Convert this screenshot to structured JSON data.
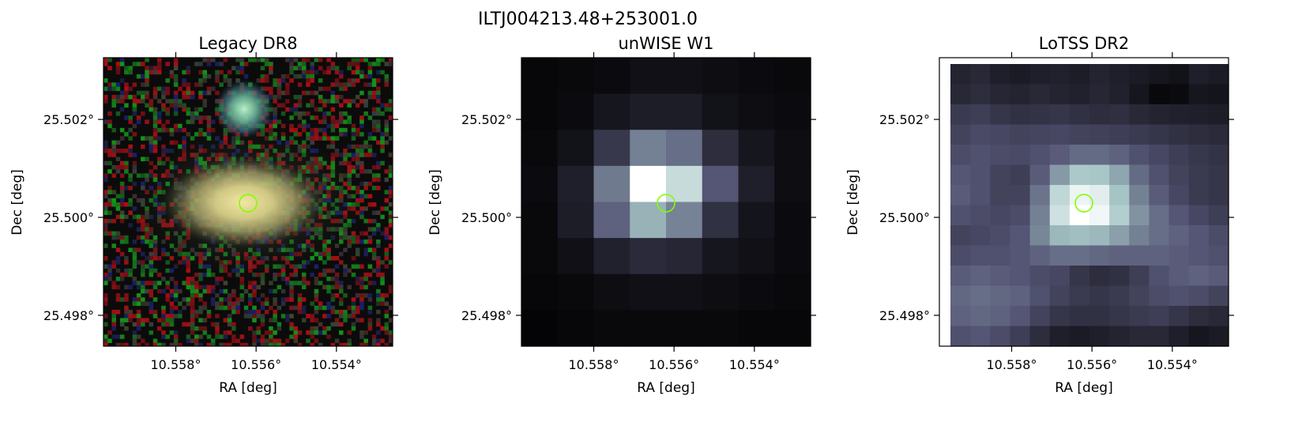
{
  "figure": {
    "suptitle": "ILTJ004213.48+253001.0"
  },
  "colors": {
    "marker": "#7fff00",
    "axes": "#000000",
    "background": "#ffffff"
  },
  "chart_data": [
    {
      "type": "image",
      "title": "Legacy DR8",
      "xlabel": "RA [deg]",
      "ylabel": "Dec [deg]",
      "xlim": [
        10.5598,
        10.5526
      ],
      "ylim": [
        25.49737,
        25.50326
      ],
      "xticks": [
        10.558,
        10.556,
        10.554
      ],
      "xtick_labels": [
        "10.558°",
        "10.556°",
        "10.554°"
      ],
      "yticks": [
        25.498,
        25.5,
        25.502
      ],
      "ytick_labels": [
        "25.498°",
        "25.500°",
        "25.502°"
      ],
      "image_kind": "rgb-optical",
      "marker": {
        "shape": "circle",
        "ra": 10.5562,
        "dec": 25.50029
      }
    },
    {
      "type": "image",
      "title": "unWISE W1",
      "xlabel": "RA [deg]",
      "ylabel": "Dec [deg]",
      "xlim": [
        10.5598,
        10.5526
      ],
      "ylim": [
        25.49737,
        25.50326
      ],
      "xticks": [
        10.558,
        10.556,
        10.554
      ],
      "xtick_labels": [
        "10.558°",
        "10.556°",
        "10.554°"
      ],
      "yticks": [
        25.498,
        25.5,
        25.502
      ],
      "ytick_labels": [
        "25.498°",
        "25.500°",
        "25.502°"
      ],
      "image_kind": "grayscale-bone",
      "pixel_grid": {
        "cols": 8,
        "rows": 8,
        "values": [
          [
            0.03,
            0.04,
            0.05,
            0.07,
            0.07,
            0.06,
            0.05,
            0.04
          ],
          [
            0.03,
            0.05,
            0.1,
            0.13,
            0.13,
            0.08,
            0.06,
            0.05
          ],
          [
            0.04,
            0.08,
            0.25,
            0.52,
            0.46,
            0.2,
            0.1,
            0.06
          ],
          [
            0.05,
            0.14,
            0.5,
            1.0,
            0.84,
            0.38,
            0.14,
            0.06
          ],
          [
            0.04,
            0.13,
            0.42,
            0.68,
            0.53,
            0.22,
            0.09,
            0.05
          ],
          [
            0.04,
            0.07,
            0.15,
            0.19,
            0.17,
            0.1,
            0.07,
            0.05
          ],
          [
            0.03,
            0.04,
            0.06,
            0.07,
            0.07,
            0.06,
            0.05,
            0.04
          ],
          [
            0.02,
            0.03,
            0.04,
            0.04,
            0.04,
            0.04,
            0.03,
            0.03
          ]
        ]
      },
      "marker": {
        "shape": "circle",
        "ra": 10.5562,
        "dec": 25.50029
      }
    },
    {
      "type": "image",
      "title": "LoTSS DR2",
      "xlabel": "RA [deg]",
      "ylabel": "Dec [deg]",
      "xlim": [
        10.5598,
        10.5526
      ],
      "ylim": [
        25.49737,
        25.50326
      ],
      "xticks": [
        10.558,
        10.556,
        10.554
      ],
      "xtick_labels": [
        "10.558°",
        "10.556°",
        "10.554°"
      ],
      "yticks": [
        25.498,
        25.5,
        25.502
      ],
      "ytick_labels": [
        "25.498°",
        "25.500°",
        "25.502°"
      ],
      "image_kind": "grayscale-bone",
      "pixel_grid": {
        "cols": 14,
        "rows": 14,
        "values": [
          [
            0.16,
            0.18,
            0.14,
            0.12,
            0.14,
            0.15,
            0.13,
            0.16,
            0.14,
            0.12,
            0.1,
            0.08,
            0.14,
            0.12
          ],
          [
            0.18,
            0.2,
            0.17,
            0.16,
            0.18,
            0.16,
            0.15,
            0.17,
            0.15,
            0.1,
            0.04,
            0.05,
            0.1,
            0.09
          ],
          [
            0.26,
            0.28,
            0.24,
            0.22,
            0.23,
            0.24,
            0.22,
            0.2,
            0.21,
            0.18,
            0.16,
            0.15,
            0.14,
            0.13
          ],
          [
            0.3,
            0.33,
            0.32,
            0.3,
            0.31,
            0.32,
            0.3,
            0.29,
            0.28,
            0.26,
            0.24,
            0.22,
            0.2,
            0.19
          ],
          [
            0.34,
            0.36,
            0.34,
            0.33,
            0.36,
            0.4,
            0.45,
            0.45,
            0.42,
            0.36,
            0.32,
            0.28,
            0.25,
            0.23
          ],
          [
            0.38,
            0.36,
            0.3,
            0.28,
            0.4,
            0.6,
            0.76,
            0.75,
            0.64,
            0.45,
            0.36,
            0.3,
            0.26,
            0.24
          ],
          [
            0.4,
            0.36,
            0.3,
            0.3,
            0.48,
            0.82,
            0.95,
            0.92,
            0.74,
            0.52,
            0.4,
            0.32,
            0.26,
            0.24
          ],
          [
            0.36,
            0.34,
            0.32,
            0.34,
            0.52,
            0.86,
            1.0,
            0.96,
            0.78,
            0.58,
            0.46,
            0.38,
            0.32,
            0.28
          ],
          [
            0.3,
            0.32,
            0.34,
            0.38,
            0.54,
            0.7,
            0.72,
            0.7,
            0.62,
            0.52,
            0.46,
            0.42,
            0.38,
            0.34
          ],
          [
            0.34,
            0.36,
            0.36,
            0.38,
            0.42,
            0.46,
            0.46,
            0.44,
            0.42,
            0.42,
            0.42,
            0.4,
            0.38,
            0.36
          ],
          [
            0.4,
            0.42,
            0.4,
            0.38,
            0.34,
            0.32,
            0.24,
            0.2,
            0.22,
            0.28,
            0.36,
            0.4,
            0.42,
            0.4
          ],
          [
            0.44,
            0.46,
            0.44,
            0.42,
            0.36,
            0.3,
            0.26,
            0.24,
            0.26,
            0.3,
            0.34,
            0.36,
            0.34,
            0.3
          ],
          [
            0.42,
            0.44,
            0.42,
            0.38,
            0.3,
            0.24,
            0.22,
            0.22,
            0.24,
            0.26,
            0.28,
            0.24,
            0.2,
            0.18
          ],
          [
            0.36,
            0.38,
            0.34,
            0.28,
            0.2,
            0.14,
            0.12,
            0.14,
            0.16,
            0.18,
            0.18,
            0.14,
            0.1,
            0.12
          ]
        ]
      },
      "marker": {
        "shape": "circle",
        "ra": 10.5562,
        "dec": 25.50029
      }
    }
  ]
}
